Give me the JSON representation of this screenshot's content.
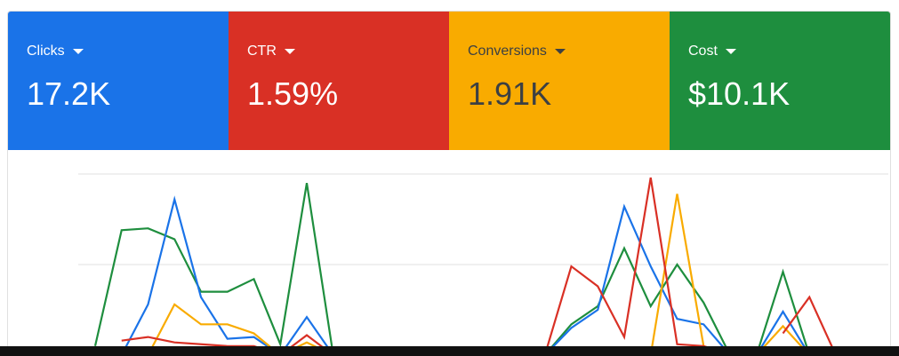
{
  "cards": [
    {
      "label": "Clicks",
      "value": "17.2K",
      "color": "#1a73e8",
      "text_color": "#ffffff"
    },
    {
      "label": "CTR",
      "value": "1.59%",
      "color": "#d93025",
      "text_color": "#ffffff"
    },
    {
      "label": "Conversions",
      "value": "1.91K",
      "color": "#f9ab00",
      "text_color": "#3c4043"
    },
    {
      "label": "Cost",
      "value": "$10.1K",
      "color": "#1e8e3e",
      "text_color": "#ffffff"
    }
  ],
  "chart_data": {
    "type": "line",
    "ylim": [
      0,
      100
    ],
    "ygrid": [
      50,
      100
    ],
    "series": [
      {
        "color": "#1e8e3e",
        "values": [
          5,
          69,
          70,
          64,
          35,
          35,
          42,
          6,
          95,
          0,
          null,
          null,
          null,
          null,
          null,
          null,
          null,
          0,
          17,
          27,
          59,
          27,
          50,
          29,
          0,
          0,
          46,
          0,
          null
        ]
      },
      {
        "color": "#1a73e8",
        "values": [
          0,
          0,
          28,
          86,
          32,
          9,
          10,
          0,
          21,
          0,
          null,
          null,
          null,
          null,
          null,
          null,
          null,
          0,
          15,
          25,
          82,
          49,
          20,
          17,
          0,
          0,
          24,
          0,
          null
        ]
      },
      {
        "color": "#f9ab00",
        "values": [
          null,
          null,
          0,
          28,
          17,
          17,
          12,
          0,
          7,
          0,
          null,
          null,
          null,
          null,
          null,
          null,
          null,
          null,
          null,
          null,
          null,
          0,
          89,
          5,
          0,
          0,
          16,
          0,
          null
        ]
      },
      {
        "color": "#d93025",
        "values": [
          null,
          8,
          10,
          7,
          6,
          5,
          5,
          0,
          11,
          0,
          null,
          null,
          null,
          null,
          null,
          null,
          null,
          0,
          49,
          38,
          10,
          98,
          6,
          5,
          0,
          null,
          12,
          32,
          0
        ]
      }
    ]
  }
}
